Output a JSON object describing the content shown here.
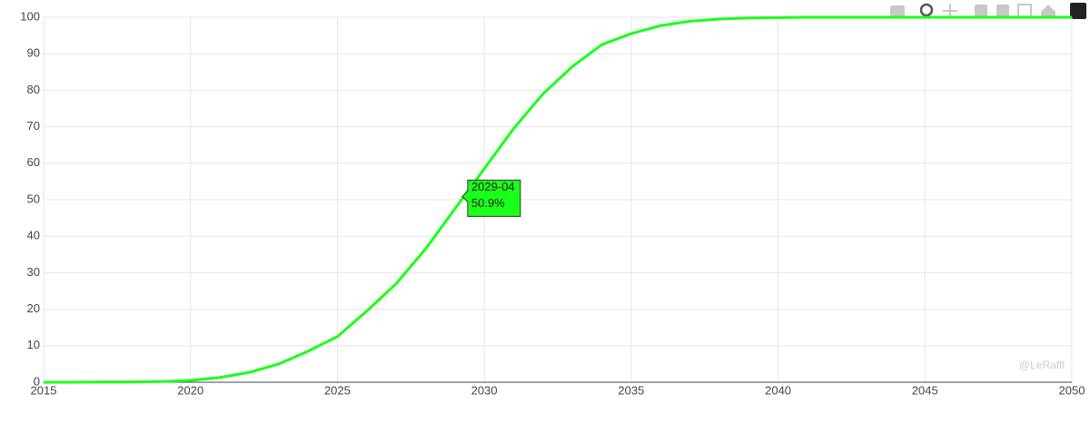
{
  "chart_data": {
    "type": "line",
    "x": [
      2015,
      2016,
      2017,
      2018,
      2019,
      2020,
      2021,
      2022,
      2023,
      2024,
      2025,
      2026,
      2027,
      2028,
      2029,
      2030,
      2031,
      2032,
      2033,
      2034,
      2035,
      2036,
      2037,
      2038,
      2039,
      2040,
      2041,
      2042,
      2043,
      2044,
      2045,
      2046,
      2047,
      2048,
      2049,
      2050
    ],
    "values": [
      0,
      0,
      0.05,
      0.1,
      0.2,
      0.5,
      1.3,
      2.7,
      5,
      8.5,
      12.5,
      19.5,
      27,
      36.5,
      47.5,
      58.5,
      69.5,
      79,
      86.5,
      92.5,
      95.5,
      97.7,
      98.9,
      99.5,
      99.8,
      99.9,
      100,
      100,
      100,
      100,
      100,
      100,
      100,
      100,
      100,
      100
    ],
    "color": "#1aff1a",
    "xlim": [
      2015,
      2050
    ],
    "xticks": [
      2015,
      2020,
      2025,
      2030,
      2035,
      2040,
      2045,
      2050
    ],
    "ylim": [
      0,
      100
    ],
    "yticks": [
      0,
      10,
      20,
      30,
      40,
      50,
      60,
      70,
      80,
      90,
      100
    ],
    "grid": true,
    "hover": {
      "x": "2029-04",
      "value": 50.9,
      "label": "50.9%"
    },
    "watermark": "@LeRaffl"
  }
}
